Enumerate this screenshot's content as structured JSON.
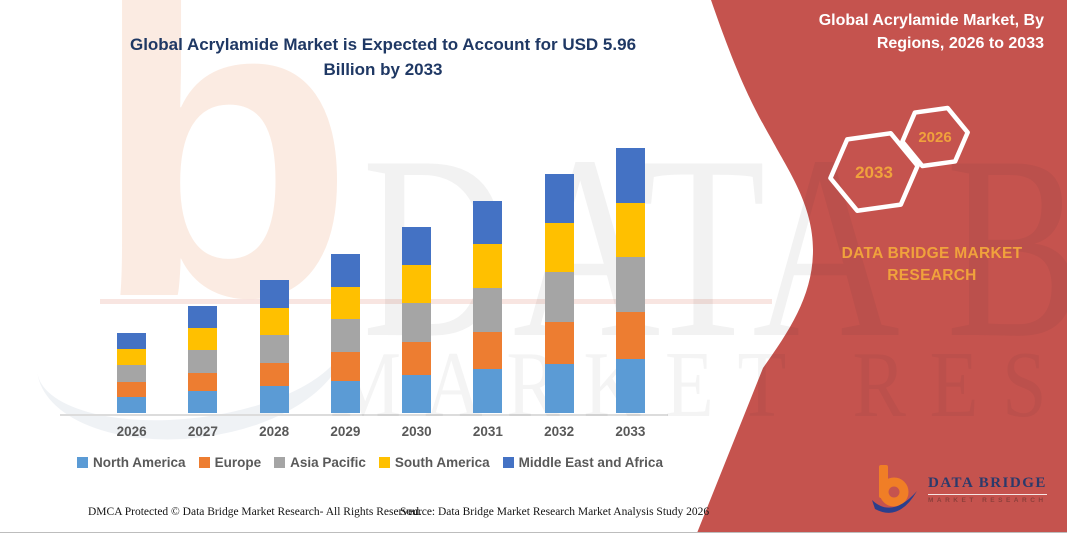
{
  "header": {
    "title_line1": "Global Acrylamide Market is Expected to Account for USD 5.96",
    "title_line2": "Billion by 2033"
  },
  "banner": {
    "title_line1": "Global Acrylamide Market, By",
    "title_line2": "Regions, 2026 to 2033",
    "hexagon_end_year": "2033",
    "hexagon_start_year": "2026",
    "brand_line1": "DATA BRIDGE MARKET",
    "brand_line2": "RESEARCH",
    "background_color": "#C5534E",
    "accent_text_color": "#F0A23C"
  },
  "chart_data": {
    "type": "bar",
    "stacked": true,
    "title": "Global Acrylamide Market is Expected to Account for USD 5.96 Billion by 2033",
    "value_unit": "USD billion (estimated from bar heights; no y-axis shown, anchored to 5.96 total in 2033)",
    "categories": [
      "2026",
      "2027",
      "2028",
      "2029",
      "2030",
      "2031",
      "2032",
      "2033"
    ],
    "series": [
      {
        "name": "North America",
        "color": "#5B9BD5",
        "values": [
          0.37,
          0.49,
          0.61,
          0.73,
          0.86,
          0.98,
          1.1,
          1.22
        ]
      },
      {
        "name": "Europe",
        "color": "#ED7D31",
        "values": [
          0.32,
          0.42,
          0.52,
          0.63,
          0.73,
          0.83,
          0.94,
          1.04
        ]
      },
      {
        "name": "Asia Pacific",
        "color": "#A5A5A5",
        "values": [
          0.38,
          0.51,
          0.63,
          0.75,
          0.88,
          1.0,
          1.13,
          1.25
        ]
      },
      {
        "name": "South America",
        "color": "#FFC000",
        "values": [
          0.37,
          0.49,
          0.61,
          0.73,
          0.86,
          0.98,
          1.1,
          1.22
        ]
      },
      {
        "name": "Middle East and Africa",
        "color": "#4472C4",
        "values": [
          0.37,
          0.49,
          0.61,
          0.73,
          0.86,
          0.98,
          1.1,
          1.23
        ]
      }
    ],
    "totals": [
      1.81,
      2.4,
      2.98,
      3.57,
      4.19,
      4.77,
      5.37,
      5.96
    ],
    "xlabel": "",
    "ylabel": "",
    "grid": false,
    "y_axis_visible": false,
    "legend_position": "bottom"
  },
  "watermark": {
    "text_primary": "DATA BRIDGE",
    "text_secondary": "MARKET RESEARCH",
    "logo_glyph": "b"
  },
  "footer": {
    "dmca": "DMCA Protected © Data Bridge Market Research-  All Rights Reserved.",
    "source": "Source: Data Bridge Market Research  Market Analysis Study 2026"
  },
  "logo": {
    "name": "DATA BRIDGE",
    "tagline": "MARKET RESEARCH"
  }
}
